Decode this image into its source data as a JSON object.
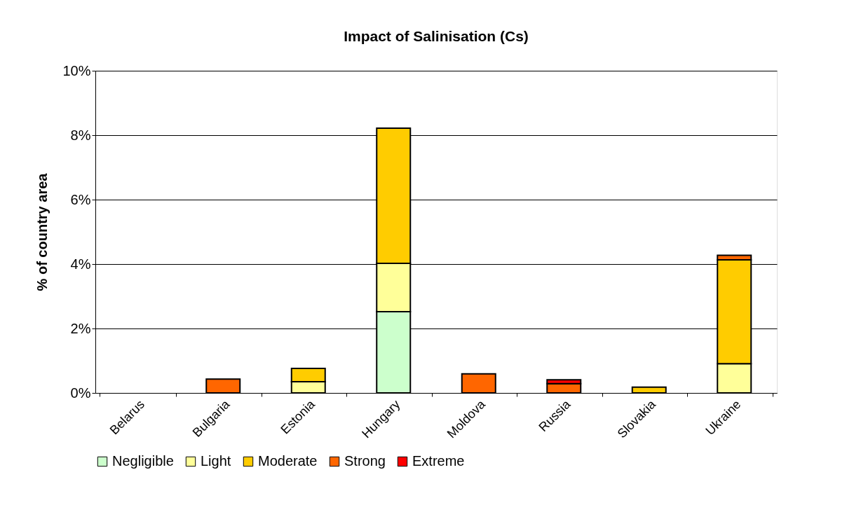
{
  "chart_data": {
    "type": "bar",
    "title": "Impact of Salinisation (Cs)",
    "ylabel": "% of country area",
    "categories": [
      "Belarus",
      "Bulgaria",
      "Estonia",
      "Hungary",
      "Moldova",
      "Russia",
      "Slovakia",
      "Ukraine"
    ],
    "stacked": true,
    "series": [
      {
        "name": "Negligible",
        "color": "#ccffcc",
        "values": [
          null,
          null,
          null,
          2.52,
          null,
          null,
          null,
          null
        ]
      },
      {
        "name": "Light",
        "color": "#ffff99",
        "values": [
          null,
          null,
          0.35,
          1.5,
          null,
          null,
          null,
          0.91
        ]
      },
      {
        "name": "Moderate",
        "color": "#ffcc00",
        "values": [
          null,
          null,
          0.41,
          4.2,
          null,
          null,
          0.18,
          3.22
        ]
      },
      {
        "name": "Strong",
        "color": "#ff6600",
        "values": [
          null,
          0.43,
          null,
          null,
          0.59,
          0.29,
          null,
          0.14
        ]
      },
      {
        "name": "Extreme",
        "color": "#ff0000",
        "values": [
          null,
          null,
          null,
          null,
          null,
          0.12,
          null,
          null
        ]
      }
    ],
    "ylim": [
      0,
      10
    ],
    "yticks": [
      {
        "value": 0,
        "label": "0%"
      },
      {
        "value": 2,
        "label": "2%"
      },
      {
        "value": 4,
        "label": "4%"
      },
      {
        "value": 6,
        "label": "6%"
      },
      {
        "value": 8,
        "label": "8%"
      },
      {
        "value": 10,
        "label": "10%"
      }
    ],
    "grid": "y",
    "legend": "bottom"
  }
}
